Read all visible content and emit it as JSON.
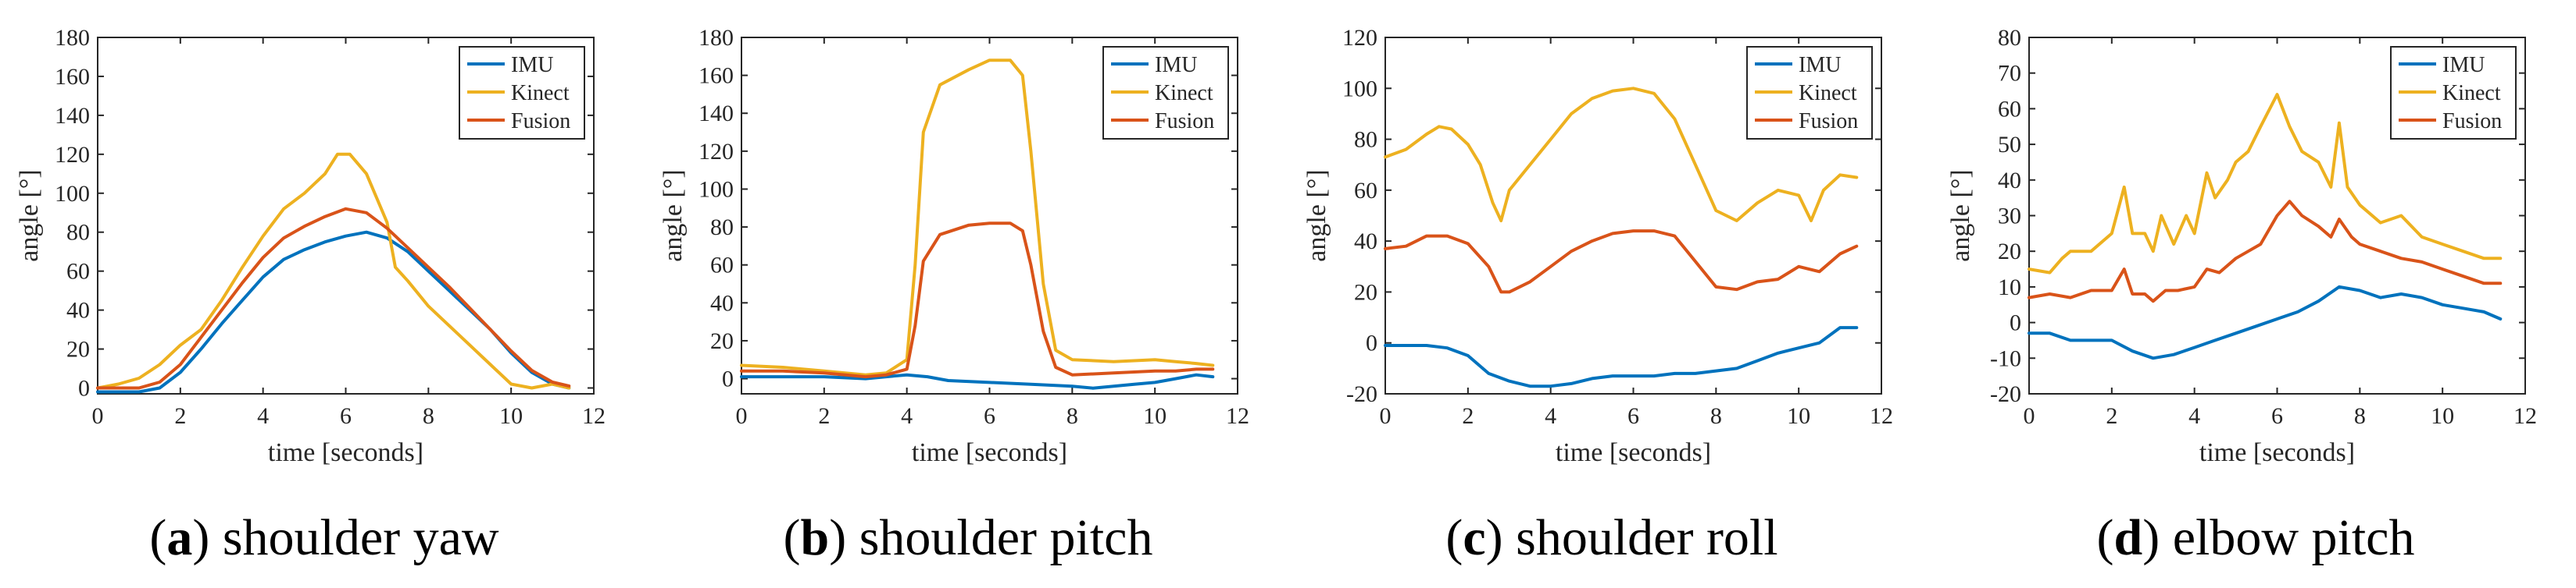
{
  "figure": {
    "series_names": [
      "IMU",
      "Kinect",
      "Fusion"
    ],
    "colors": {
      "IMU": "#0072BD",
      "Kinect": "#EDB120",
      "Fusion": "#D95319"
    }
  },
  "chart_data": [
    {
      "type": "line",
      "caption_letter": "a",
      "caption_text": "shoulder yaw",
      "xlabel": "time [seconds]",
      "ylabel": "angle [°]",
      "xlim": [
        0,
        12
      ],
      "ylim": [
        -3,
        180
      ],
      "xticks": [
        "0",
        "2",
        "4",
        "6",
        "8",
        "10",
        "12"
      ],
      "xtick_values": [
        0,
        2,
        4,
        6,
        8,
        10,
        12
      ],
      "yticks": [
        "0",
        "20",
        "40",
        "60",
        "80",
        "100",
        "120",
        "140",
        "160",
        "180"
      ],
      "ytick_values": [
        0,
        20,
        40,
        60,
        80,
        100,
        120,
        140,
        160,
        180
      ],
      "legend": [
        "IMU",
        "Kinect",
        "Fusion"
      ],
      "legend_position": "top-right",
      "series": [
        {
          "name": "IMU",
          "x": [
            0,
            1,
            1.5,
            2,
            2.5,
            3,
            3.5,
            4,
            4.5,
            5,
            5.5,
            6,
            6.5,
            7,
            7.5,
            8,
            8.5,
            9,
            9.5,
            10,
            10.5,
            11,
            11.4
          ],
          "y": [
            -2,
            -2,
            0,
            8,
            20,
            33,
            45,
            57,
            66,
            71,
            75,
            78,
            80,
            77,
            70,
            60,
            50,
            40,
            30,
            18,
            8,
            2,
            0
          ]
        },
        {
          "name": "Kinect",
          "x": [
            0,
            0.5,
            1,
            1.5,
            2,
            2.5,
            3,
            3.5,
            4,
            4.5,
            5,
            5.5,
            5.8,
            6.1,
            6.5,
            7,
            7.2,
            7.5,
            8,
            8.5,
            9,
            9.5,
            10,
            10.5,
            11,
            11.4
          ],
          "y": [
            0,
            2,
            5,
            12,
            22,
            30,
            45,
            62,
            78,
            92,
            100,
            110,
            120,
            120,
            110,
            85,
            62,
            55,
            42,
            32,
            22,
            12,
            2,
            0,
            2,
            0
          ]
        },
        {
          "name": "Fusion",
          "x": [
            0,
            1,
            1.5,
            2,
            2.5,
            3,
            3.5,
            4,
            4.5,
            5,
            5.5,
            6,
            6.5,
            7,
            7.5,
            8,
            8.5,
            9,
            9.5,
            10,
            10.5,
            11,
            11.4
          ],
          "y": [
            0,
            0,
            3,
            12,
            26,
            40,
            54,
            67,
            77,
            83,
            88,
            92,
            90,
            82,
            72,
            62,
            52,
            41,
            30,
            19,
            9,
            3,
            1
          ]
        }
      ]
    },
    {
      "type": "line",
      "caption_letter": "b",
      "caption_text": "shoulder pitch",
      "xlabel": "time [seconds]",
      "ylabel": "angle [°]",
      "xlim": [
        0,
        12
      ],
      "ylim": [
        -8,
        180
      ],
      "xticks": [
        "0",
        "2",
        "4",
        "6",
        "8",
        "10",
        "12"
      ],
      "xtick_values": [
        0,
        2,
        4,
        6,
        8,
        10,
        12
      ],
      "yticks": [
        "0",
        "20",
        "40",
        "60",
        "80",
        "100",
        "120",
        "140",
        "160",
        "180"
      ],
      "ytick_values": [
        0,
        20,
        40,
        60,
        80,
        100,
        120,
        140,
        160,
        180
      ],
      "legend": [
        "IMU",
        "Kinect",
        "Fusion"
      ],
      "legend_position": "top-right",
      "series": [
        {
          "name": "IMU",
          "x": [
            0,
            1,
            2,
            3,
            3.5,
            4,
            4.5,
            5,
            6,
            7,
            8,
            8.5,
            9,
            9.5,
            10,
            10.5,
            11,
            11.4
          ],
          "y": [
            1,
            1,
            1,
            0,
            1,
            2,
            1,
            -1,
            -2,
            -3,
            -4,
            -5,
            -4,
            -3,
            -2,
            0,
            2,
            1
          ]
        },
        {
          "name": "Kinect",
          "x": [
            0,
            1,
            2,
            3,
            3.5,
            4,
            4.2,
            4.4,
            4.8,
            5.5,
            6,
            6.5,
            6.8,
            7,
            7.3,
            7.6,
            8,
            9,
            10,
            10.5,
            11,
            11.4
          ],
          "y": [
            7,
            6,
            4,
            2,
            3,
            10,
            60,
            130,
            155,
            163,
            168,
            168,
            160,
            120,
            50,
            15,
            10,
            9,
            10,
            9,
            8,
            7
          ]
        },
        {
          "name": "Fusion",
          "x": [
            0,
            1,
            2,
            3,
            3.5,
            4,
            4.2,
            4.4,
            4.8,
            5.5,
            6,
            6.5,
            6.8,
            7,
            7.3,
            7.6,
            8,
            9,
            10,
            10.5,
            11,
            11.4
          ],
          "y": [
            4,
            4,
            3,
            1,
            2,
            5,
            28,
            62,
            76,
            81,
            82,
            82,
            78,
            60,
            25,
            6,
            2,
            3,
            4,
            4,
            5,
            5
          ]
        }
      ]
    },
    {
      "type": "line",
      "caption_letter": "c",
      "caption_text": "shoulder roll",
      "xlabel": "time [seconds]",
      "ylabel": "angle [°]",
      "xlim": [
        0,
        12
      ],
      "ylim": [
        -20,
        120
      ],
      "xticks": [
        "0",
        "2",
        "4",
        "6",
        "8",
        "10",
        "12"
      ],
      "xtick_values": [
        0,
        2,
        4,
        6,
        8,
        10,
        12
      ],
      "yticks": [
        "-20",
        "0",
        "20",
        "40",
        "60",
        "80",
        "100",
        "120"
      ],
      "ytick_values": [
        -20,
        0,
        20,
        40,
        60,
        80,
        100,
        120
      ],
      "legend": [
        "IMU",
        "Kinect",
        "Fusion"
      ],
      "legend_position": "top-right",
      "series": [
        {
          "name": "IMU",
          "x": [
            0,
            0.5,
            1,
            1.5,
            2,
            2.5,
            3,
            3.5,
            4,
            4.5,
            5,
            5.5,
            6,
            6.5,
            7,
            7.5,
            8,
            8.5,
            9,
            9.5,
            10,
            10.5,
            11,
            11.4
          ],
          "y": [
            -1,
            -1,
            -1,
            -2,
            -5,
            -12,
            -15,
            -17,
            -17,
            -16,
            -14,
            -13,
            -13,
            -13,
            -12,
            -12,
            -11,
            -10,
            -7,
            -4,
            -2,
            0,
            6,
            6
          ]
        },
        {
          "name": "Kinect",
          "x": [
            0,
            0.5,
            1,
            1.3,
            1.6,
            2,
            2.3,
            2.6,
            2.8,
            3,
            3.5,
            4,
            4.5,
            5,
            5.5,
            6,
            6.5,
            7,
            7.5,
            8,
            8.5,
            9,
            9.5,
            10,
            10.3,
            10.6,
            11,
            11.4
          ],
          "y": [
            73,
            76,
            82,
            85,
            84,
            78,
            70,
            55,
            48,
            60,
            70,
            80,
            90,
            96,
            99,
            100,
            98,
            88,
            70,
            52,
            48,
            55,
            60,
            58,
            48,
            60,
            66,
            65
          ]
        },
        {
          "name": "Fusion",
          "x": [
            0,
            0.5,
            1,
            1.5,
            2,
            2.5,
            2.8,
            3,
            3.5,
            4,
            4.5,
            5,
            5.5,
            6,
            6.5,
            7,
            7.5,
            8,
            8.5,
            9,
            9.5,
            10,
            10.5,
            11,
            11.4
          ],
          "y": [
            37,
            38,
            42,
            42,
            39,
            30,
            20,
            20,
            24,
            30,
            36,
            40,
            43,
            44,
            44,
            42,
            32,
            22,
            21,
            24,
            25,
            30,
            28,
            35,
            38
          ]
        }
      ]
    },
    {
      "type": "line",
      "caption_letter": "d",
      "caption_text": "elbow pitch",
      "xlabel": "time [seconds]",
      "ylabel": "angle [°]",
      "xlim": [
        0,
        12
      ],
      "ylim": [
        -20,
        80
      ],
      "xticks": [
        "0",
        "2",
        "4",
        "6",
        "8",
        "10",
        "12"
      ],
      "xtick_values": [
        0,
        2,
        4,
        6,
        8,
        10,
        12
      ],
      "yticks": [
        "-20",
        "-10",
        "0",
        "10",
        "20",
        "30",
        "40",
        "50",
        "60",
        "70",
        "80"
      ],
      "ytick_values": [
        -20,
        -10,
        0,
        10,
        20,
        30,
        40,
        50,
        60,
        70,
        80
      ],
      "legend": [
        "IMU",
        "Kinect",
        "Fusion"
      ],
      "legend_position": "top-right",
      "series": [
        {
          "name": "IMU",
          "x": [
            0,
            0.5,
            1,
            1.5,
            2,
            2.5,
            3,
            3.5,
            4,
            4.5,
            5,
            5.5,
            6,
            6.5,
            7,
            7.5,
            8,
            8.5,
            9,
            9.5,
            10,
            10.5,
            11,
            11.4
          ],
          "y": [
            -3,
            -3,
            -5,
            -5,
            -5,
            -8,
            -10,
            -9,
            -7,
            -5,
            -3,
            -1,
            1,
            3,
            6,
            10,
            9,
            7,
            8,
            7,
            5,
            4,
            3,
            1
          ]
        },
        {
          "name": "Kinect",
          "x": [
            0,
            0.5,
            0.8,
            1,
            1.5,
            2,
            2.3,
            2.5,
            2.8,
            3,
            3.2,
            3.5,
            3.8,
            4,
            4.3,
            4.5,
            4.8,
            5,
            5.3,
            5.6,
            6,
            6.3,
            6.6,
            7,
            7.3,
            7.5,
            7.7,
            8,
            8.5,
            9,
            9.5,
            10,
            10.5,
            11,
            11.4
          ],
          "y": [
            15,
            14,
            18,
            20,
            20,
            25,
            38,
            25,
            25,
            20,
            30,
            22,
            30,
            25,
            42,
            35,
            40,
            45,
            48,
            55,
            64,
            55,
            48,
            45,
            38,
            56,
            38,
            33,
            28,
            30,
            24,
            22,
            20,
            18,
            18
          ]
        },
        {
          "name": "Fusion",
          "x": [
            0,
            0.5,
            1,
            1.5,
            2,
            2.3,
            2.5,
            2.8,
            3,
            3.3,
            3.6,
            4,
            4.3,
            4.6,
            5,
            5.3,
            5.6,
            6,
            6.3,
            6.6,
            7,
            7.3,
            7.5,
            7.8,
            8,
            8.5,
            9,
            9.5,
            10,
            10.5,
            11,
            11.4
          ],
          "y": [
            7,
            8,
            7,
            9,
            9,
            15,
            8,
            8,
            6,
            9,
            9,
            10,
            15,
            14,
            18,
            20,
            22,
            30,
            34,
            30,
            27,
            24,
            29,
            24,
            22,
            20,
            18,
            17,
            15,
            13,
            11,
            11
          ]
        }
      ]
    }
  ]
}
